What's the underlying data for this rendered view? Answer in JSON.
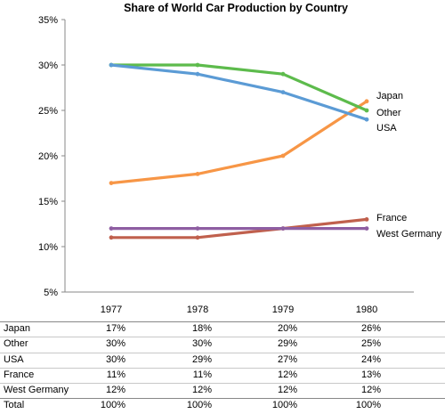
{
  "chart_data": {
    "type": "line",
    "title": "Share of World Car Production by Country",
    "categories": [
      "1977",
      "1978",
      "1979",
      "1980"
    ],
    "y_ticks": [
      "5%",
      "10%",
      "15%",
      "20%",
      "25%",
      "30%",
      "35%"
    ],
    "ylim": [
      5,
      35
    ],
    "grid": false,
    "legend_placement": "right, labels at line ends",
    "series": [
      {
        "name": "Japan",
        "values": [
          17,
          18,
          20,
          26
        ],
        "color": "#F79646"
      },
      {
        "name": "Other",
        "values": [
          30,
          30,
          29,
          25
        ],
        "color": "#5DBB4C"
      },
      {
        "name": "USA",
        "values": [
          30,
          29,
          27,
          24
        ],
        "color": "#5B9BD5"
      },
      {
        "name": "France",
        "values": [
          11,
          11,
          12,
          13
        ],
        "color": "#C0604D"
      },
      {
        "name": "West Germany",
        "values": [
          12,
          12,
          12,
          12
        ],
        "color": "#8E5EA2"
      }
    ]
  },
  "table": {
    "headers": [
      "1977",
      "1978",
      "1979",
      "1980"
    ],
    "rows": [
      {
        "name": "Japan",
        "cells": [
          "17%",
          "18%",
          "20%",
          "26%"
        ]
      },
      {
        "name": "Other",
        "cells": [
          "30%",
          "30%",
          "29%",
          "25%"
        ]
      },
      {
        "name": "USA",
        "cells": [
          "30%",
          "29%",
          "27%",
          "24%"
        ]
      },
      {
        "name": "France",
        "cells": [
          "11%",
          "11%",
          "12%",
          "13%"
        ]
      },
      {
        "name": "West Germany",
        "cells": [
          "12%",
          "12%",
          "12%",
          "12%"
        ]
      }
    ],
    "total": {
      "name": "Total",
      "cells": [
        "100%",
        "100%",
        "100%",
        "100%"
      ]
    }
  }
}
